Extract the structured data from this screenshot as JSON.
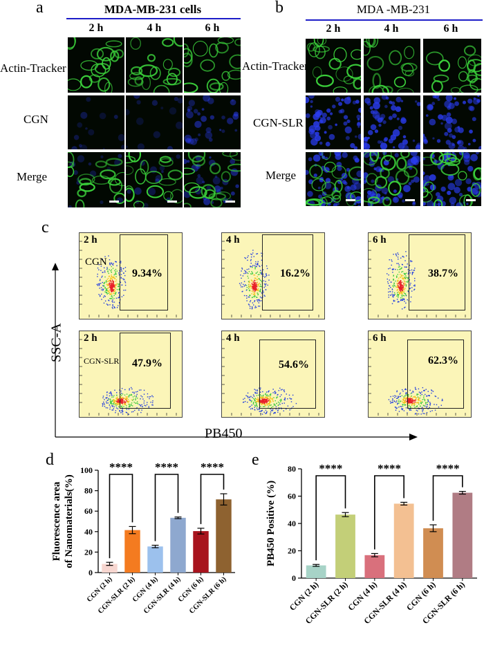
{
  "panel_a": {
    "letter": "a",
    "header": "MDA-MB-231 cells",
    "times": [
      "2 h",
      "4 h",
      "6 h"
    ],
    "rows": [
      "Actin-Tracker",
      "CGN",
      "Merge"
    ]
  },
  "panel_b": {
    "letter": "b",
    "header": "MDA -MB-231",
    "times": [
      "2 h",
      "4 h",
      "6 h"
    ],
    "rows": [
      "Actin-Tracker",
      "CGN-SLR",
      "Merge"
    ]
  },
  "panel_c": {
    "letter": "c",
    "y_axis": "SSC-A",
    "x_axis": "PB450",
    "plots": [
      {
        "time": "2 h",
        "group": "CGN",
        "percent": "9.34%"
      },
      {
        "time": "4 h",
        "group": "",
        "percent": "16.2%"
      },
      {
        "time": "6 h",
        "group": "",
        "percent": "38.7%"
      },
      {
        "time": "2 h",
        "group": "CGN-SLR",
        "percent": "47.9%"
      },
      {
        "time": "4 h",
        "group": "",
        "percent": "54.6%"
      },
      {
        "time": "6 h",
        "group": "",
        "percent": "62.3%"
      }
    ]
  },
  "colors": {
    "actin": "#3bd13b",
    "nano": "#2a3cf0",
    "flow_bg": "#fbf5b8",
    "header_line": "#1c1cc8"
  },
  "chart_data": [
    {
      "panel": "d",
      "type": "bar",
      "ylabel": "Fluorescence area of Nanomaterials(%)",
      "ylabel_line1": "Fluorescence area",
      "ylabel_line2": "of Nanomaterials(%)",
      "ylim": [
        0,
        100
      ],
      "yticks": [
        "0",
        "20",
        "40",
        "60",
        "80",
        "100"
      ],
      "categories": [
        "CGN (2 h)",
        "CGN-SLR (2 h)",
        "CGN (4 h)",
        "CGN-SLR (4 h)",
        "CGN (6 h)",
        "CGN-SLR (6 h)"
      ],
      "values": [
        8.5,
        41.5,
        25.5,
        53.5,
        40.5,
        71.5
      ],
      "errors": [
        1.5,
        3.5,
        1.2,
        0.8,
        2.8,
        5.5
      ],
      "colors": [
        "#f7d6d0",
        "#f47b20",
        "#9cc1ed",
        "#8ea8cf",
        "#a8141e",
        "#8e6230"
      ],
      "significance": "****"
    },
    {
      "panel": "e",
      "type": "bar",
      "ylabel": "PB450 Positive (%)",
      "ylim": [
        0,
        80
      ],
      "yticks": [
        "0",
        "20",
        "40",
        "60",
        "80"
      ],
      "categories": [
        "CGN (2 h)",
        "CGN-SLR (2 h)",
        "CGN (4 h)",
        "CGN-SLR (4 h)",
        "CGN (6 h)",
        "CGN-SLR (6 h)"
      ],
      "values": [
        9.3,
        46.5,
        16.8,
        54.5,
        36.5,
        62.5
      ],
      "errors": [
        0.7,
        1.5,
        1.2,
        1.0,
        2.5,
        1.0
      ],
      "colors": [
        "#a7d3c7",
        "#c3cf78",
        "#d9707c",
        "#f3c092",
        "#d08d52",
        "#b07c84"
      ],
      "significance": "****"
    }
  ]
}
